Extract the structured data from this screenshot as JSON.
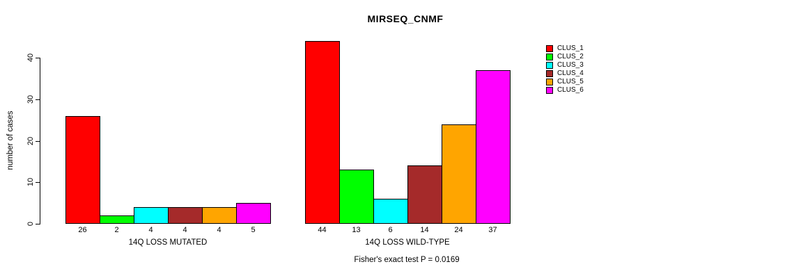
{
  "title": "MIRSEQ_CNMF",
  "chart_data": {
    "type": "bar",
    "title": "MIRSEQ_CNMF",
    "xlabel": "",
    "ylabel": "number of cases",
    "ylim": [
      0,
      44
    ],
    "yticks": [
      0,
      10,
      20,
      30,
      40
    ],
    "grid": false,
    "legend_position": "top-right",
    "categories": [
      "14Q LOSS MUTATED",
      "14Q LOSS WILD-TYPE"
    ],
    "series": [
      {
        "name": "CLUS_1",
        "color": "#FF0000",
        "values": [
          26,
          44
        ]
      },
      {
        "name": "CLUS_2",
        "color": "#00FF00",
        "values": [
          2,
          13
        ]
      },
      {
        "name": "CLUS_3",
        "color": "#00FFFF",
        "values": [
          4,
          6
        ]
      },
      {
        "name": "CLUS_4",
        "color": "#A52A2A",
        "values": [
          4,
          14
        ]
      },
      {
        "name": "CLUS_5",
        "color": "#FFA500",
        "values": [
          4,
          24
        ]
      },
      {
        "name": "CLUS_6",
        "color": "#FF00FF",
        "values": [
          5,
          37
        ]
      }
    ],
    "bar_value_labels": {
      "14Q LOSS MUTATED": [
        26,
        2,
        4,
        4,
        4,
        5
      ],
      "14Q LOSS WILD-TYPE": [
        44,
        13,
        6,
        14,
        24,
        37
      ]
    },
    "annotation": "Fisher's exact test P = 0.0169"
  },
  "legend": {
    "items": [
      {
        "label": "CLUS_1",
        "color": "#FF0000"
      },
      {
        "label": "CLUS_2",
        "color": "#00FF00"
      },
      {
        "label": "CLUS_3",
        "color": "#00FFFF"
      },
      {
        "label": "CLUS_4",
        "color": "#A52A2A"
      },
      {
        "label": "CLUS_5",
        "color": "#FFA500"
      },
      {
        "label": "CLUS_6",
        "color": "#FF00FF"
      }
    ]
  }
}
